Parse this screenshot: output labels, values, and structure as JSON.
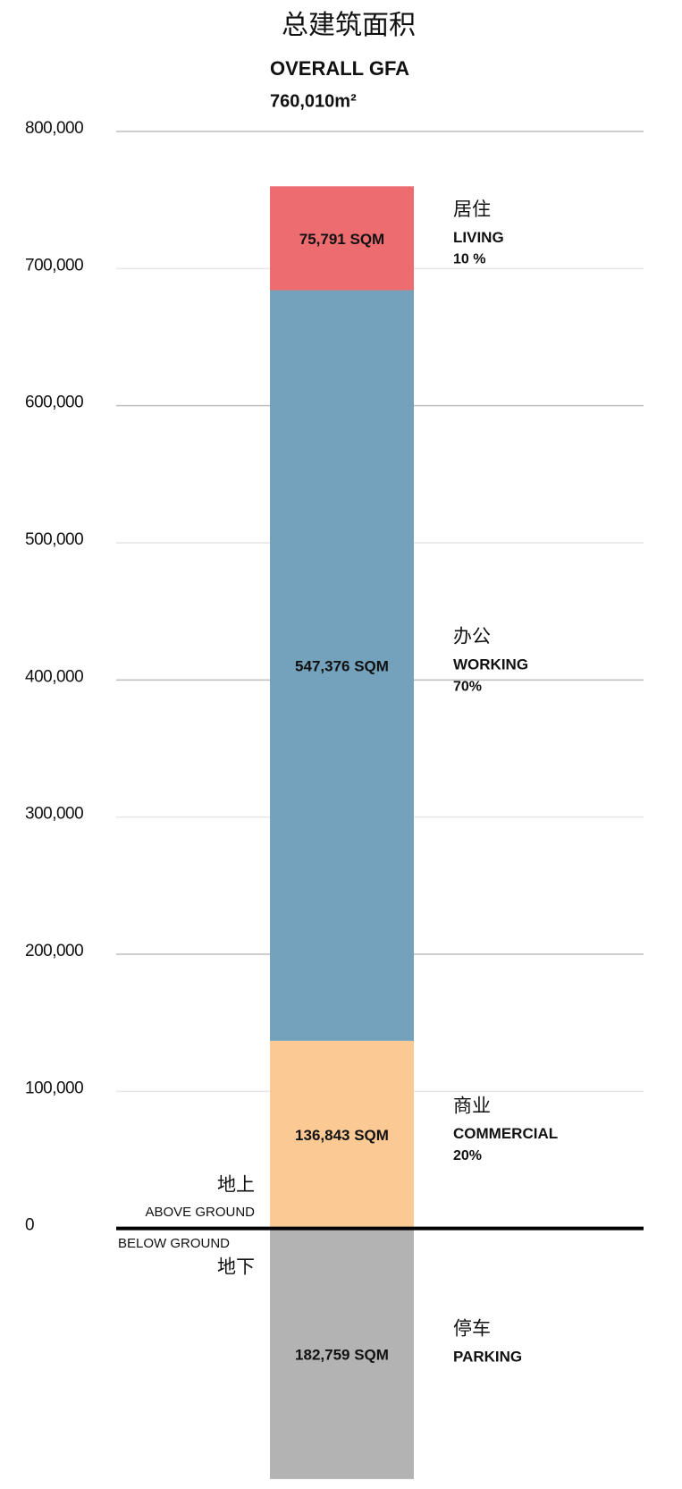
{
  "chart_data": {
    "type": "stacked-bar",
    "title": "总建筑面积",
    "subtitle": "OVERALL GFA",
    "total_label": "760,010m²",
    "ylim": [
      -190000,
      800000
    ],
    "yticks": [
      {
        "value": 800000,
        "label": "800,000"
      },
      {
        "value": 700000,
        "label": "700,000"
      },
      {
        "value": 600000,
        "label": "600,000"
      },
      {
        "value": 500000,
        "label": "500,000"
      },
      {
        "value": 400000,
        "label": "400,000"
      },
      {
        "value": 300000,
        "label": "300,000"
      },
      {
        "value": 200000,
        "label": "200,000"
      },
      {
        "value": 100000,
        "label": "100,000"
      },
      0
    ],
    "grid": true,
    "annotations": {
      "above_cn": "地上",
      "above_en": "ABOVE GROUND",
      "below_en": "BELOW GROUND",
      "below_cn": "地下"
    },
    "series": [
      {
        "name": "商业",
        "name_en": "COMMERCIAL",
        "share_label": "20%",
        "color": "#fbc994",
        "values": [
          136843
        ],
        "value_labels": [
          "136,843 SQM"
        ],
        "stack": "above"
      },
      {
        "name": "办公",
        "name_en": "WORKING",
        "share_label": "70%",
        "color": "#74a1bb",
        "values": [
          547376
        ],
        "value_labels": [
          "547,376 SQM"
        ],
        "stack": "above"
      },
      {
        "name": "居住",
        "name_en": "LIVING",
        "share_label": "10 %",
        "color": "#ec6c6f",
        "values": [
          75791
        ],
        "value_labels": [
          "75,791 SQM"
        ],
        "stack": "above"
      },
      {
        "name": "停车",
        "name_en": "PARKING",
        "color": "#b3b3b3",
        "values": [
          182759
        ],
        "value_labels": [
          "182,759 SQM"
        ],
        "stack": "below"
      }
    ]
  }
}
